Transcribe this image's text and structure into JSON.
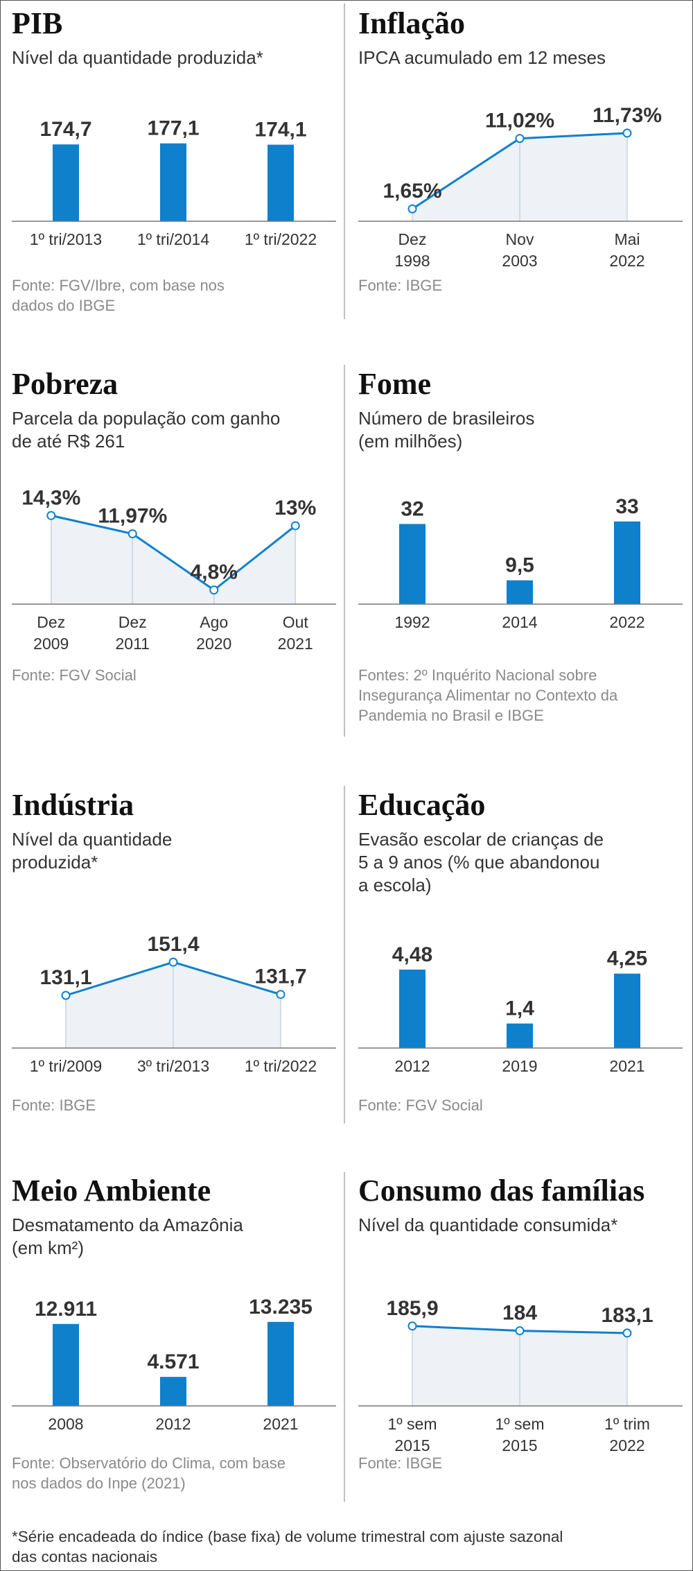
{
  "chart_data": [
    {
      "type": "bar",
      "title": "PIB",
      "subtitle": "Nível da quantidade produzida*",
      "categories": [
        "1º tri/2013",
        "1º tri/2014",
        "1º tri/2022"
      ],
      "values": [
        174.7,
        177.1,
        174.1
      ],
      "value_labels": [
        "174,7",
        "177,1",
        "174,1"
      ],
      "ylim": [
        0,
        205
      ],
      "color": "#0f80cc",
      "source": "Fonte: FGV/Ibre, com base nos\ndados do IBGE"
    },
    {
      "type": "line",
      "title": "Inflação",
      "subtitle": "IPCA acumulado em 12 meses",
      "categories": [
        "Dez\n1998",
        "Nov\n2003",
        "Mai\n2022"
      ],
      "values": [
        1.65,
        11.02,
        11.73
      ],
      "value_labels": [
        "1,65%",
        "11,02%",
        "11,73%"
      ],
      "ylim": [
        0,
        12
      ],
      "color": "#0f80cc",
      "source": "Fonte: IBGE"
    },
    {
      "type": "line",
      "title": "Pobreza",
      "subtitle": "Parcela da população com ganho\nde até R$ 261",
      "categories": [
        "Dez\n2009",
        "Dez\n2011",
        "Ago\n2020",
        "Out\n2021"
      ],
      "values": [
        14.3,
        11.97,
        4.8,
        13
      ],
      "value_labels": [
        "14,3%",
        "11,97%",
        "4,8%",
        "13%"
      ],
      "ylim": [
        3,
        14.5
      ],
      "color": "#0f80cc",
      "source": "Fonte: FGV Social"
    },
    {
      "type": "bar",
      "title": "Fome",
      "subtitle": "Número de brasileiros\n(em milhões)",
      "categories": [
        "1992",
        "2014",
        "2022"
      ],
      "values": [
        32,
        9.5,
        33
      ],
      "value_labels": [
        "32",
        "9,5",
        "33"
      ],
      "ylim": [
        0,
        36
      ],
      "color": "#0f80cc",
      "source": "Fontes: 2º Inquérito Nacional sobre\nInsegurança Alimentar no Contexto da\nPandemia no Brasil e IBGE"
    },
    {
      "type": "line",
      "title": "Indústria",
      "subtitle": "Nível da quantidade\nproduzida*",
      "categories": [
        "1º tri/2009",
        "3º tri/2013",
        "1º tri/2022"
      ],
      "values": [
        131.1,
        151.4,
        131.7
      ],
      "value_labels": [
        "131,1",
        "151,4",
        "131,7"
      ],
      "ylim": [
        99,
        154
      ],
      "color": "#0f80cc",
      "source": "Fonte: IBGE"
    },
    {
      "type": "bar",
      "title": "Educação",
      "subtitle": "Evasão escolar de crianças de\n5 a 9 anos (% que abandonou\na escola)",
      "categories": [
        "2012",
        "2019",
        "2021"
      ],
      "values": [
        4.48,
        1.4,
        4.25
      ],
      "value_labels": [
        "4,48",
        "1,4",
        "4,25"
      ],
      "ylim": [
        0,
        5.15
      ],
      "color": "#0f80cc",
      "source": "Fonte: FGV Social"
    },
    {
      "type": "bar",
      "title": "Meio Ambiente",
      "subtitle": "Desmatamento da Amazônia\n(em km²)",
      "categories": [
        "2008",
        "2012",
        "2021"
      ],
      "values": [
        12911,
        4571,
        13235
      ],
      "value_labels": [
        "12.911",
        "4.571",
        "13.235"
      ],
      "ylim": [
        0,
        14200
      ],
      "color": "#0f80cc",
      "source": "Fonte: Observatório do Clima, com base\nnos dados do Inpe (2021)"
    },
    {
      "type": "line",
      "title": "Consumo das famílias",
      "subtitle": "Nível da quantidade consumida*",
      "categories": [
        "1º sem\n2015",
        "1º sem\n2015",
        "1º trim\n2022"
      ],
      "values": [
        185.9,
        184,
        183.1
      ],
      "value_labels": [
        "185,9",
        "184",
        "183,1"
      ],
      "ylim": [
        154,
        190
      ],
      "color": "#0f80cc",
      "source": "Fonte: IBGE"
    }
  ],
  "footnote": "*Série encadeada do índice (base fixa) de volume trimestral com ajuste sazonal\ndas contas nacionais"
}
